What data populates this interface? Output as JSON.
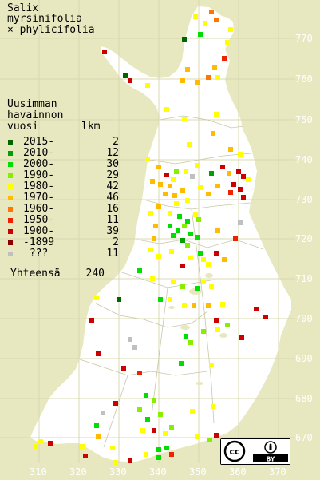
{
  "title": {
    "line1": "Salix",
    "line2": "myrsinifolia",
    "line3": "× phylicifolia"
  },
  "legend": {
    "heading1": "Uusimman",
    "heading2": "havainnon",
    "heading3_left": "vuosi",
    "heading3_right": "lkm",
    "items": [
      {
        "label": "2015-",
        "count": "2",
        "color": "#006400"
      },
      {
        "label": "2010-",
        "count": "12",
        "color": "#00a000"
      },
      {
        "label": "2000-",
        "count": "30",
        "color": "#00dd00"
      },
      {
        "label": "1990-",
        "count": "29",
        "color": "#88ee00"
      },
      {
        "label": "1980-",
        "count": "42",
        "color": "#ffff00"
      },
      {
        "label": "1970-",
        "count": "46",
        "color": "#ffbb00"
      },
      {
        "label": "1960-",
        "count": "16",
        "color": "#ff7700"
      },
      {
        "label": "1950-",
        "count": "11",
        "color": "#ee2200"
      },
      {
        "label": "1900-",
        "count": "39",
        "color": "#cc0000"
      },
      {
        "label": "-1899",
        "count": "2",
        "color": "#880000"
      },
      {
        "label": " ???",
        "count": "11",
        "color": "#c0c0c0"
      }
    ],
    "total_label": "Yhteensä",
    "total_count": "240"
  },
  "y_axis_labels": [
    "770",
    "760",
    "750",
    "740",
    "730",
    "720",
    "710",
    "700",
    "690",
    "680",
    "670"
  ],
  "x_axis_labels": [
    "310",
    "320",
    "330",
    "340",
    "350",
    "360",
    "370"
  ],
  "license": {
    "left": "cc",
    "right": "BY"
  },
  "colors": {
    "background": "#e8e8c0",
    "land": "#ffffff",
    "grid": "#d8d8b0"
  }
}
